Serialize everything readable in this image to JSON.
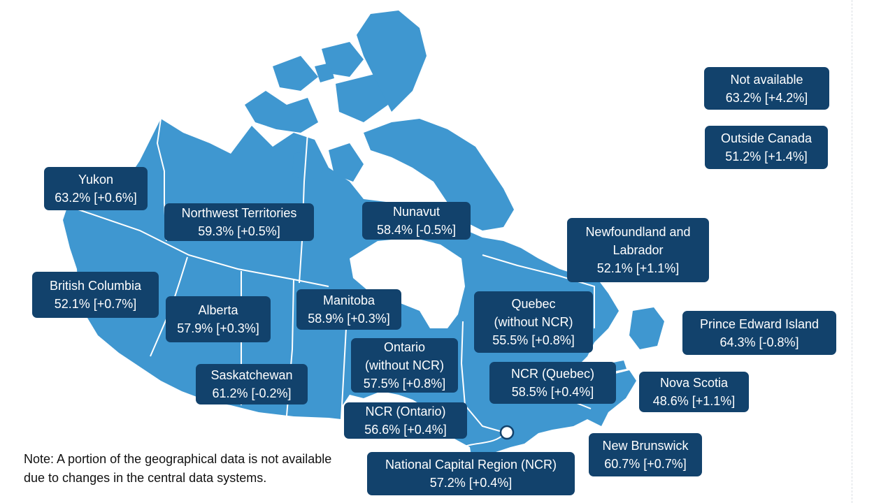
{
  "colors": {
    "land": "#3f97d0",
    "border": "#ffffff",
    "label_bg": "#12426c",
    "label_text": "#ffffff"
  },
  "regions": {
    "yukon": {
      "name": "Yukon",
      "value": "63.2% [+0.6%]"
    },
    "nwt": {
      "name": "Northwest Territories",
      "value": "59.3% [+0.5%]"
    },
    "nunavut": {
      "name": "Nunavut",
      "value": "58.4% [-0.5%]"
    },
    "bc": {
      "name": "British Columbia",
      "value": "52.1% [+0.7%]"
    },
    "alberta": {
      "name": "Alberta",
      "value": "57.9% [+0.3%]"
    },
    "saskatchewan": {
      "name": "Saskatchewan",
      "value": "61.2% [-0.2%]"
    },
    "manitoba": {
      "name": "Manitoba",
      "value": "58.9% [+0.3%]"
    },
    "ontario": {
      "name_line1": "Ontario",
      "name_line2": "(without NCR)",
      "value": "57.5% [+0.8%]"
    },
    "ncr_ontario": {
      "name": "NCR (Ontario)",
      "value": "56.6% [+0.4%]"
    },
    "quebec": {
      "name_line1": "Quebec",
      "name_line2": "(without NCR)",
      "value": "55.5% [+0.8%]"
    },
    "ncr_quebec": {
      "name": "NCR (Quebec)",
      "value": "58.5% [+0.4%]"
    },
    "ncr": {
      "name": "National Capital Region (NCR)",
      "value": "57.2% [+0.4%]"
    },
    "nl": {
      "name_line1": "Newfoundland and",
      "name_line2": "Labrador",
      "value": "52.1% [+1.1%]"
    },
    "pei": {
      "name": "Prince Edward Island",
      "value": "64.3% [-0.8%]"
    },
    "nova_scotia": {
      "name": "Nova Scotia",
      "value": "48.6% [+1.1%]"
    },
    "new_brunswick": {
      "name": "New Brunswick",
      "value": "60.7% [+0.7%]"
    },
    "not_available": {
      "name": "Not available",
      "value": "63.2% [+4.2%]"
    },
    "outside_canada": {
      "name": "Outside Canada",
      "value": "51.2% [+1.4%]"
    }
  },
  "note": "Note: A portion of the geographical data is not available due to changes in the central data systems."
}
